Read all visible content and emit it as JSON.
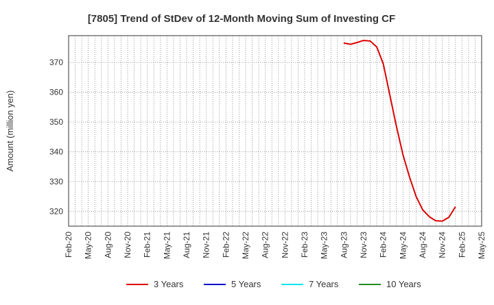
{
  "chart_data": {
    "type": "line",
    "title": "[7805]  Trend of StDev of 12-Month Moving Sum of Investing CF",
    "xlabel": "",
    "ylabel": "Amount (million yen)",
    "ylim": [
      315,
      379
    ],
    "yticks": [
      320,
      330,
      340,
      350,
      360,
      370
    ],
    "grid": true,
    "legend_position": "bottom",
    "x_tick_labels": [
      "Feb-20",
      "May-20",
      "Aug-20",
      "Nov-20",
      "Feb-21",
      "May-21",
      "Aug-21",
      "Nov-21",
      "Feb-22",
      "May-22",
      "Aug-22",
      "Nov-22",
      "Feb-23",
      "May-23",
      "Aug-23",
      "Nov-23",
      "Feb-24",
      "May-24",
      "Aug-24",
      "Nov-24",
      "Feb-25",
      "May-25"
    ],
    "series": [
      {
        "name": "3 Years",
        "color": "#dd0000",
        "points": [
          {
            "x": "Aug-23",
            "y": 376.5
          },
          {
            "x": "Sep-23",
            "y": 376.1
          },
          {
            "x": "Oct-23",
            "y": 376.7
          },
          {
            "x": "Nov-23",
            "y": 377.4
          },
          {
            "x": "Dec-23",
            "y": 377.2
          },
          {
            "x": "Jan-24",
            "y": 375.2
          },
          {
            "x": "Feb-24",
            "y": 369.5
          },
          {
            "x": "Mar-24",
            "y": 359.0
          },
          {
            "x": "Apr-24",
            "y": 348.5
          },
          {
            "x": "May-24",
            "y": 339.0
          },
          {
            "x": "Jun-24",
            "y": 331.5
          },
          {
            "x": "Jul-24",
            "y": 325.0
          },
          {
            "x": "Aug-24",
            "y": 320.5
          },
          {
            "x": "Sep-24",
            "y": 318.2
          },
          {
            "x": "Oct-24",
            "y": 316.8
          },
          {
            "x": "Nov-24",
            "y": 316.7
          },
          {
            "x": "Dec-24",
            "y": 318.0
          },
          {
            "x": "Jan-25",
            "y": 321.5
          }
        ]
      },
      {
        "name": "5 Years",
        "color": "#0000cc",
        "points": []
      },
      {
        "name": "7 Years",
        "color": "#00e5ee",
        "points": []
      },
      {
        "name": "10 Years",
        "color": "#228b22",
        "points": []
      }
    ]
  }
}
